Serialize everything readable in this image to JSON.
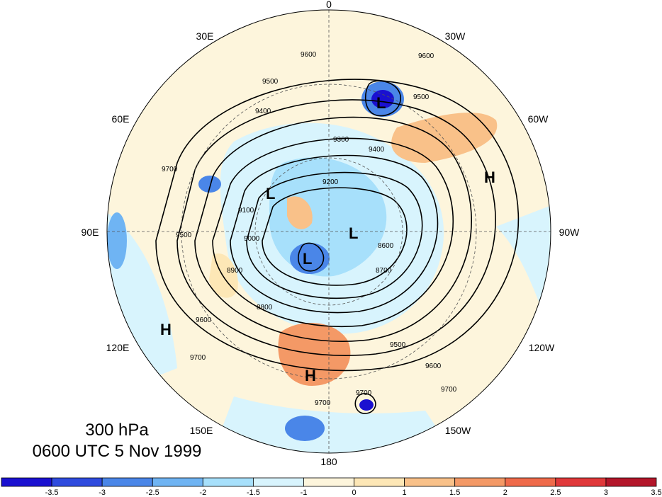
{
  "caption": {
    "level": "300 hPa",
    "time": "0600 UTC 5 Nov 1999"
  },
  "longitude_labels": {
    "top": "0",
    "bottom": "180",
    "e30": "30E",
    "e60": "60E",
    "e90": "90E",
    "e120": "120E",
    "e150": "150E",
    "w30": "30W",
    "w60": "60W",
    "w90": "90W",
    "w120": "120W",
    "w150": "150W"
  },
  "pressure_centers": {
    "low": "L",
    "high": "H"
  },
  "contour_labels": [
    "9600",
    "9600",
    "9500",
    "9500",
    "9400",
    "9400",
    "9300",
    "9200",
    "9100",
    "9000",
    "8900",
    "8800",
    "8700",
    "8600",
    "9500",
    "9500",
    "9600",
    "9600",
    "9700",
    "9700",
    "9700",
    "9700",
    "9700"
  ],
  "colorbar": {
    "colors": [
      "#1a10d0",
      "#2f4bde",
      "#4a86e8",
      "#6fb4f3",
      "#a7e0fb",
      "#d8f4fd",
      "#fdf5dc",
      "#fde7b6",
      "#f9c189",
      "#f49966",
      "#ef6a4a",
      "#e0383a",
      "#b3162a"
    ],
    "tick_labels": [
      "-3.5",
      "-3",
      "-2.5",
      "-2",
      "-1.5",
      "-1",
      "0",
      "1",
      "1.5",
      "2",
      "2.5",
      "3",
      "3.5"
    ]
  }
}
